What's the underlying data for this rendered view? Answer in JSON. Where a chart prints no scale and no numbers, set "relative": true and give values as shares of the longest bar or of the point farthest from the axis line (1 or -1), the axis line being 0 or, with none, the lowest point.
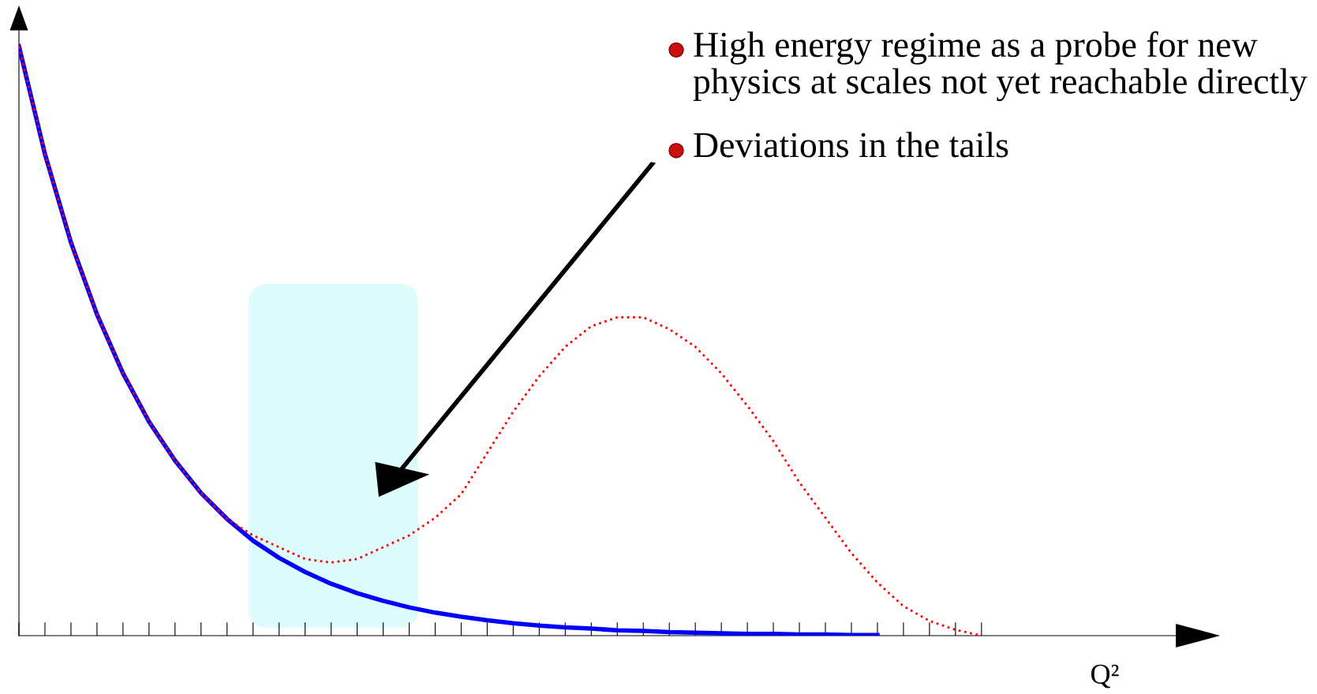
{
  "chart_data": {
    "type": "line",
    "relative": true,
    "xlabel": "Q²",
    "categories": [
      null,
      null,
      null,
      null,
      null,
      null,
      null,
      null,
      null,
      null,
      null,
      null,
      null,
      null,
      null,
      null,
      null,
      null,
      null,
      null,
      null,
      null,
      null,
      null,
      null,
      null,
      null,
      null,
      null,
      null,
      null,
      null,
      null,
      null,
      null,
      null,
      null,
      null
    ],
    "series": [
      {
        "color": "#ff0000",
        "line_style": "dotted",
        "values": [
          1.0,
          0.817,
          0.667,
          0.545,
          0.445,
          0.363,
          0.297,
          0.242,
          0.198,
          0.17,
          0.15,
          0.13,
          0.124,
          0.13,
          0.15,
          0.17,
          0.2,
          0.24,
          0.31,
          0.38,
          0.44,
          0.49,
          0.525,
          0.54,
          0.54,
          0.52,
          0.49,
          0.445,
          0.39,
          0.33,
          0.26,
          0.2,
          0.14,
          0.09,
          0.05,
          0.025,
          0.01,
          0.0
        ]
      },
      {
        "color": "#0000ff",
        "line_style": "solid",
        "values": [
          1.0,
          0.817,
          0.667,
          0.545,
          0.445,
          0.363,
          0.297,
          0.242,
          0.198,
          0.161,
          0.132,
          0.108,
          0.088,
          0.072,
          0.059,
          0.048,
          0.039,
          0.032,
          0.026,
          0.021,
          0.017,
          0.014,
          0.012,
          0.009,
          0.008,
          0.006,
          0.005,
          0.004,
          0.003,
          0.003,
          0.002,
          0.002,
          0.001,
          0.001,
          null,
          null,
          null,
          null
        ]
      }
    ],
    "annotations": [
      "High energy regime as a probe for new\nphysics at scales not yet reachable directly",
      "Deviations in the tails"
    ],
    "grid": false,
    "legend": false,
    "marker": "none"
  }
}
